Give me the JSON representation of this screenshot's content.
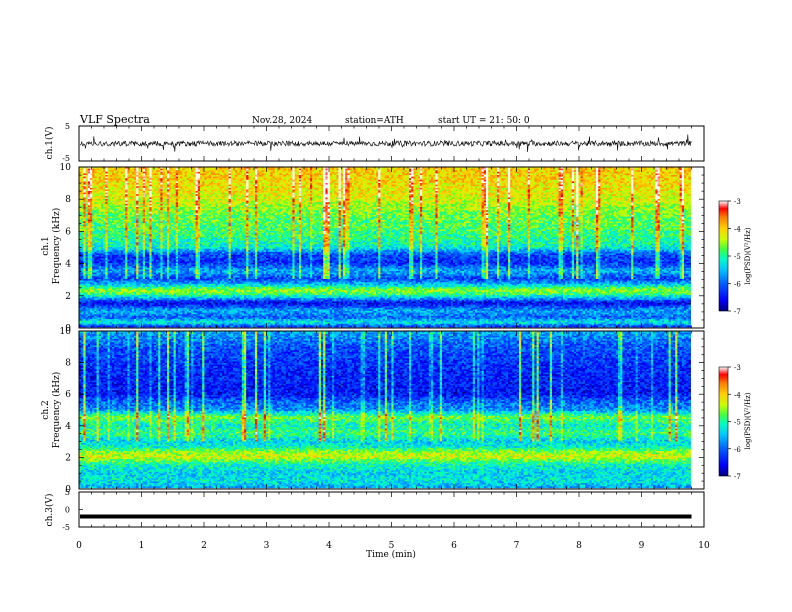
{
  "header": {
    "title": "VLF  Spectra",
    "date": "Nov.28, 2024",
    "station": "station=ATH",
    "start_time": "start  UT  =    21: 50: 0"
  },
  "colors": {
    "waveform": "#000000",
    "axes": "#000000",
    "background": "#ffffff",
    "colormap": [
      "#7f0000",
      "#ff0000",
      "#ff8000",
      "#ffd000",
      "#c8ff00",
      "#40ff40",
      "#00ffc0",
      "#00c8ff",
      "#0060ff",
      "#0000ff",
      "#00007f"
    ]
  },
  "chart_data": [
    {
      "id": "ch1_waveform",
      "type": "line",
      "ylabel": "ch.1(V)",
      "ylim": [
        -5,
        5
      ],
      "yticks": [
        "5",
        "-5"
      ],
      "xlim": [
        0,
        10
      ],
      "description_values": {
        "data_end_min": 9.8,
        "mean_V": 0.0,
        "approx_amplitude_V": 1.5
      }
    },
    {
      "id": "ch1_spectrogram",
      "type": "heatmap",
      "ylabel_line1": "ch.1",
      "ylabel_line2": "Frequency  (kHz)",
      "ylim": [
        0,
        10
      ],
      "yticks": [
        "0",
        "2",
        "4",
        "6",
        "8",
        "10"
      ],
      "xlim": [
        0,
        10
      ],
      "data_end_min": 9.8,
      "colorbar": {
        "label": "log(PSD)(V²/Hz)",
        "range": [
          -7,
          -3
        ],
        "ticks": [
          "-3",
          "-4",
          "-5",
          "-6",
          "-7"
        ]
      },
      "profile": {
        "freq_kHz": [
          0,
          0.3,
          0.6,
          1.0,
          1.5,
          2.0,
          2.3,
          2.7,
          3.0,
          3.5,
          4.0,
          4.5,
          5.0,
          6.0,
          7.0,
          8.0,
          9.0,
          10.0
        ],
        "logpsd": [
          -6.3,
          -5.2,
          -6.0,
          -5.6,
          -6.6,
          -5.0,
          -4.5,
          -5.6,
          -6.2,
          -5.6,
          -6.3,
          -6.2,
          -5.2,
          -4.9,
          -4.7,
          -4.3,
          -4.1,
          -4.0
        ]
      }
    },
    {
      "id": "ch2_spectrogram",
      "type": "heatmap",
      "ylabel_line1": "ch.2",
      "ylabel_line2": "Frequency  (kHz)",
      "ylim": [
        0,
        10
      ],
      "yticks": [
        "0",
        "2",
        "4",
        "6",
        "8",
        "10"
      ],
      "xlim": [
        0,
        10
      ],
      "data_end_min": 9.8,
      "colorbar": {
        "label": "log(PSD)(V²/Hz)",
        "range": [
          -7,
          -3
        ],
        "ticks": [
          "-3",
          "-4",
          "-5",
          "-6",
          "-7"
        ]
      },
      "profile": {
        "freq_kHz": [
          0,
          0.5,
          1.0,
          1.5,
          2.0,
          2.3,
          2.6,
          3.0,
          3.5,
          4.0,
          4.5,
          5.0,
          5.5,
          6.0,
          7.0,
          8.0,
          9.0,
          10.0
        ],
        "logpsd": [
          -5.6,
          -5.3,
          -5.4,
          -5.1,
          -4.3,
          -4.6,
          -5.2,
          -5.4,
          -4.9,
          -5.2,
          -4.7,
          -5.8,
          -6.0,
          -6.5,
          -6.4,
          -6.3,
          -6.1,
          -5.6
        ]
      }
    },
    {
      "id": "ch3_waveform",
      "type": "line",
      "ylabel": "ch.3(V)",
      "ylim": [
        -5,
        5
      ],
      "yticks": [
        "5",
        "0",
        "-5"
      ],
      "xlim": [
        0,
        10
      ],
      "xlabel": "Time  (min)",
      "xticks": [
        "0",
        "1",
        "2",
        "3",
        "4",
        "5",
        "6",
        "7",
        "8",
        "9",
        "10"
      ],
      "description_values": {
        "data_end_min": 9.8,
        "constant_level_V": -2
      }
    }
  ]
}
